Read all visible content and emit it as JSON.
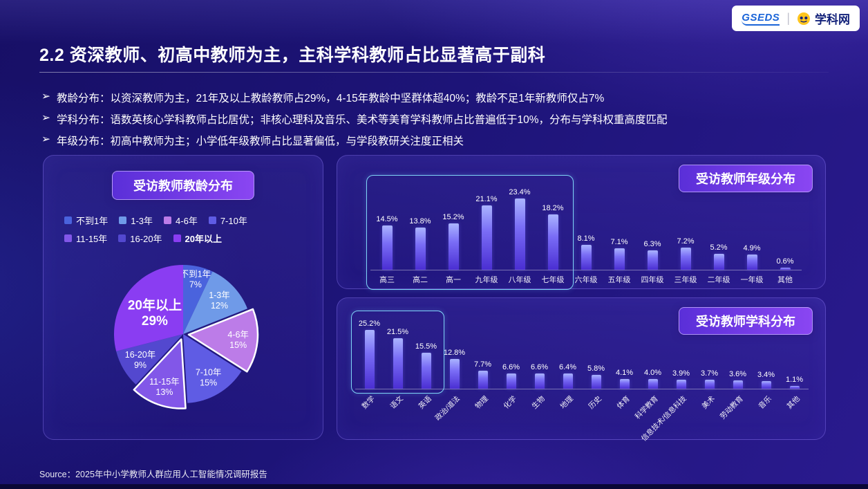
{
  "header": {
    "logo_left": "GSEDS",
    "divider": "|",
    "logo_right": "学科网"
  },
  "title": "2.2 资深教师、初高中教师为主，主科学科教师占比显著高于副科",
  "bullets": [
    {
      "marker": "➢",
      "text": "教龄分布：以资深教师为主，21年及以上教龄教师占29%，4-15年教龄中坚群体超40%；教龄不足1年新教师仅占7%"
    },
    {
      "marker": "➢",
      "text": "学科分布：语数英核心学科教师占比居优；非核心理科及音乐、美术等美育学科教师占比普遍低于10%，分布与学科权重高度匹配"
    },
    {
      "marker": "➢",
      "text": "年级分布：初高中教师为主；小学低年级教师占比显著偏低，与学段教研关注度正相关"
    }
  ],
  "source": "Source：2025年中小学教师人群应用人工智能情况调研报告",
  "colors": {
    "bar_top": "#aab4ff",
    "bar_bottom": "#4a2ed2",
    "highlight_border": "#7fd4f6",
    "badge_from": "#5a2fd8",
    "badge_to": "#8a46f2"
  },
  "chart_data": [
    {
      "type": "pie",
      "title": "受访教师教龄分布",
      "legend_rows": [
        [
          0,
          1,
          2,
          3
        ],
        [
          4,
          5,
          6
        ]
      ],
      "slices": [
        {
          "label": "不到1年",
          "value": 7,
          "color": "#4a63dd"
        },
        {
          "label": "1-3年",
          "value": 12,
          "color": "#6f9ae8"
        },
        {
          "label": "4-6年",
          "value": 15,
          "color": "#bc7ce8",
          "exploded": true,
          "stroked": true
        },
        {
          "label": "7-10年",
          "value": 15,
          "color": "#5f5ce4"
        },
        {
          "label": "11-15年",
          "value": 13,
          "color": "#8257e8",
          "exploded": true,
          "stroked": true
        },
        {
          "label": "16-20年",
          "value": 9,
          "color": "#5348cf"
        },
        {
          "label": "20年以上",
          "value": 29,
          "color": "#8a3df2",
          "big_label": true
        }
      ]
    },
    {
      "type": "bar",
      "title": "受访教师年级分布",
      "categories": [
        "高三",
        "高二",
        "高一",
        "九年级",
        "八年级",
        "七年级",
        "六年级",
        "五年级",
        "四年级",
        "三年级",
        "二年级",
        "一年级",
        "其他"
      ],
      "values": [
        14.5,
        13.8,
        15.2,
        21.1,
        23.4,
        18.2,
        8.1,
        7.1,
        6.3,
        7.2,
        5.2,
        4.9,
        0.6
      ],
      "ylim": [
        0,
        25
      ],
      "highlight_group": {
        "from": 0,
        "to": 5
      }
    },
    {
      "type": "bar",
      "title": "受访教师学科分布",
      "categories": [
        "数学",
        "语文",
        "英语",
        "政治/道法",
        "物理",
        "化学",
        "生物",
        "地理",
        "历史",
        "体育",
        "科学教育",
        "信息技术/信息科技",
        "美术",
        "劳动教育",
        "音乐",
        "其他"
      ],
      "values": [
        25.2,
        21.5,
        15.5,
        12.8,
        7.7,
        6.6,
        6.6,
        6.4,
        5.8,
        4.1,
        4.0,
        3.9,
        3.7,
        3.6,
        3.4,
        1.1
      ],
      "ylim": [
        0,
        26
      ],
      "highlight_group": {
        "from": 0,
        "to": 2
      }
    }
  ]
}
